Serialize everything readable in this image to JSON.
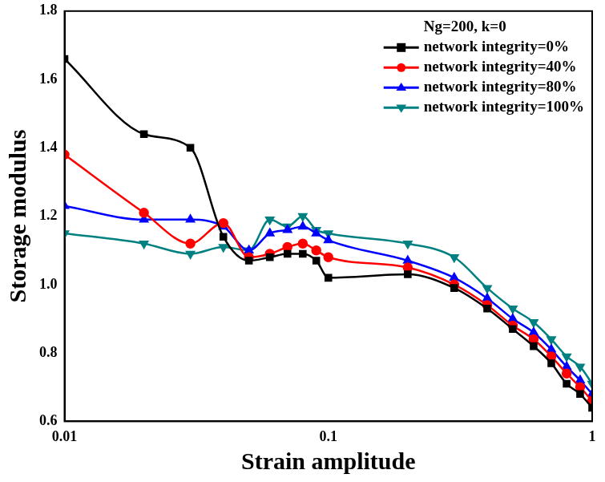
{
  "chart_data": {
    "type": "line",
    "x_label": "Strain amplitude",
    "y_label": "Storage modulus",
    "legend_title": "Ng=200, k=0",
    "x": [
      0.01,
      0.02,
      0.03,
      0.04,
      0.05,
      0.06,
      0.07,
      0.08,
      0.09,
      0.1,
      0.2,
      0.3,
      0.4,
      0.5,
      0.6,
      0.7,
      0.8,
      0.9,
      1
    ],
    "series": [
      {
        "name": "network integrity=0%",
        "color": "#000000",
        "marker": "square",
        "line_style": "solid",
        "values": [
          1.66,
          1.44,
          1.4,
          1.14,
          1.07,
          1.08,
          1.09,
          1.09,
          1.07,
          1.02,
          1.03,
          0.99,
          0.93,
          0.87,
          0.82,
          0.77,
          0.71,
          0.68,
          0.64
        ]
      },
      {
        "name": "network integrity=40%",
        "color": "#ff0000",
        "marker": "circle",
        "line_style": "solid",
        "values": [
          1.38,
          1.21,
          1.12,
          1.18,
          1.08,
          1.09,
          1.11,
          1.12,
          1.1,
          1.08,
          1.05,
          1.0,
          0.94,
          0.88,
          0.84,
          0.79,
          0.74,
          0.7,
          0.66
        ]
      },
      {
        "name": "network integrity=80%",
        "color": "#0000ff",
        "marker": "triangle-up",
        "line_style": "solid",
        "values": [
          1.23,
          1.19,
          1.19,
          1.17,
          1.1,
          1.15,
          1.16,
          1.17,
          1.15,
          1.13,
          1.07,
          1.02,
          0.96,
          0.9,
          0.86,
          0.81,
          0.76,
          0.72,
          0.68
        ]
      },
      {
        "name": "network integrity=100%",
        "color": "#008080",
        "marker": "triangle-down",
        "line_style": "solid",
        "values": [
          1.15,
          1.12,
          1.09,
          1.11,
          1.1,
          1.19,
          1.17,
          1.2,
          1.16,
          1.15,
          1.12,
          1.08,
          0.99,
          0.93,
          0.89,
          0.84,
          0.79,
          0.76,
          0.71
        ]
      }
    ],
    "xlim": [
      0.01,
      1
    ],
    "xticks": [
      0.01,
      0.1,
      1
    ],
    "ylim": [
      0.6,
      1.8
    ],
    "yticks": [
      0.6,
      0.8,
      {
        "value": 1,
        "label": "1.0"
      },
      1.2,
      1.4,
      1.6,
      1.8
    ],
    "log": "x",
    "grid": false,
    "legend": "top-right"
  }
}
